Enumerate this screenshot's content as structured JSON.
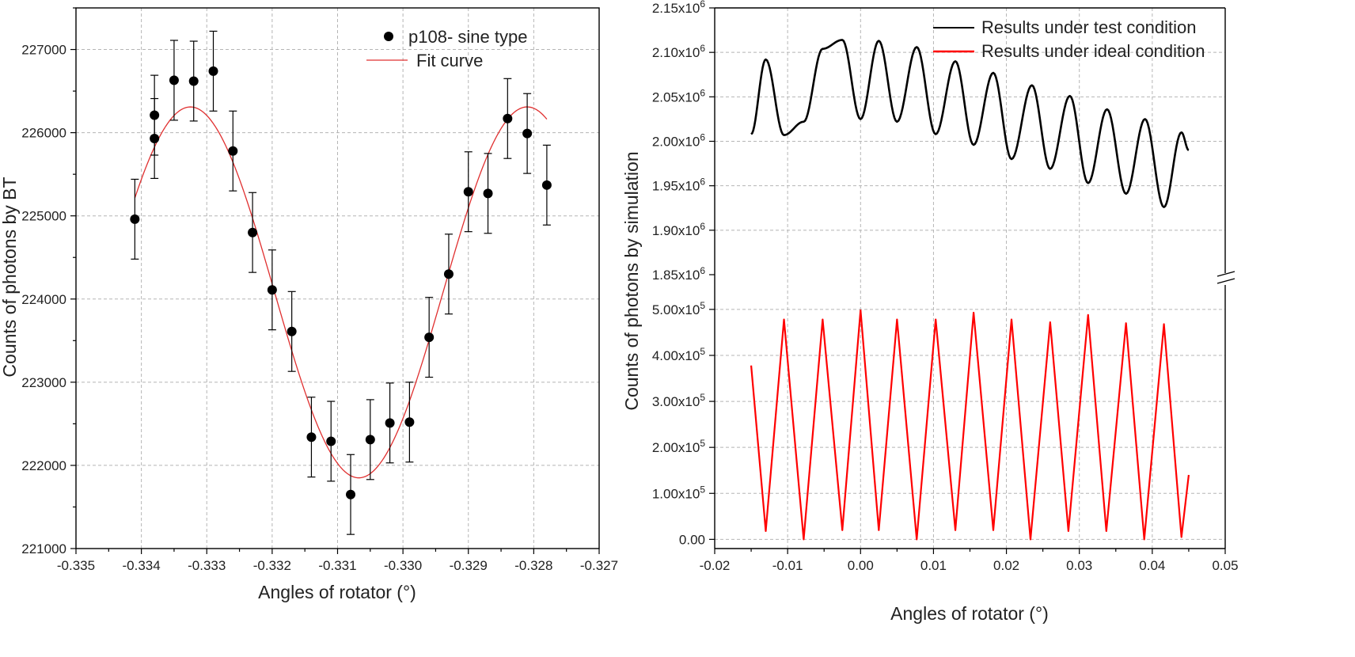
{
  "chart_data": [
    {
      "type": "scatter",
      "xlabel": "Angles of rotator (°)",
      "ylabel": "Counts of photons by BT",
      "xlim": [
        -0.335,
        -0.327
      ],
      "ylim": [
        221000,
        227500
      ],
      "xticks": [
        -0.335,
        -0.334,
        -0.333,
        -0.332,
        -0.331,
        -0.33,
        -0.329,
        -0.328,
        -0.327
      ],
      "xtick_labels": [
        "-0.335",
        "-0.334",
        "-0.333",
        "-0.332",
        "-0.331",
        "-0.330",
        "-0.329",
        "-0.328",
        "-0.327"
      ],
      "yticks": [
        221000,
        222000,
        223000,
        224000,
        225000,
        226000,
        227000
      ],
      "ytick_labels": [
        "221000",
        "222000",
        "223000",
        "224000",
        "225000",
        "226000",
        "227000"
      ],
      "grid": true,
      "legend_position": "top-right",
      "series": [
        {
          "name": "p108- sine type",
          "kind": "points-with-error-bars",
          "color": "#000000",
          "error": 480,
          "points": [
            {
              "x": -0.3341,
              "y": 224960
            },
            {
              "x": -0.3338,
              "y": 226210
            },
            {
              "x": -0.3338,
              "y": 225930
            },
            {
              "x": -0.3335,
              "y": 226630
            },
            {
              "x": -0.3332,
              "y": 226620
            },
            {
              "x": -0.3329,
              "y": 226740
            },
            {
              "x": -0.3326,
              "y": 225780
            },
            {
              "x": -0.3323,
              "y": 224800
            },
            {
              "x": -0.332,
              "y": 224110
            },
            {
              "x": -0.3317,
              "y": 223610
            },
            {
              "x": -0.3314,
              "y": 222340
            },
            {
              "x": -0.3311,
              "y": 222290
            },
            {
              "x": -0.3308,
              "y": 221650
            },
            {
              "x": -0.3305,
              "y": 222310
            },
            {
              "x": -0.3302,
              "y": 222510
            },
            {
              "x": -0.3299,
              "y": 222520
            },
            {
              "x": -0.3296,
              "y": 223540
            },
            {
              "x": -0.3293,
              "y": 224300
            },
            {
              "x": -0.329,
              "y": 225290
            },
            {
              "x": -0.3287,
              "y": 225270
            },
            {
              "x": -0.3284,
              "y": 226170
            },
            {
              "x": -0.3281,
              "y": 225990
            },
            {
              "x": -0.3278,
              "y": 225370
            }
          ]
        },
        {
          "name": "Fit curve",
          "kind": "sine-fit",
          "color": "#e03030",
          "center": 224080,
          "amplitude": 2230,
          "peak_x": -0.33325,
          "period": 0.00515,
          "x_range": [
            -0.3341,
            -0.3278
          ]
        }
      ]
    },
    {
      "type": "line",
      "xlabel": "Angles of rotator (°)",
      "ylabel": "Counts of photons by simulation",
      "xlim": [
        -0.02,
        0.05
      ],
      "xticks": [
        -0.02,
        -0.01,
        0.0,
        0.01,
        0.02,
        0.03,
        0.04,
        0.05
      ],
      "xtick_labels": [
        "-0.02",
        "-0.01",
        "0.00",
        "0.01",
        "0.02",
        "0.03",
        "0.04",
        "0.05"
      ],
      "broken_y_axis": true,
      "upper_ylim": [
        1850000,
        2150000
      ],
      "upper_yticks": [
        {
          "value": 1850000,
          "mantissa": "1.85x10",
          "exp": "6"
        },
        {
          "value": 1900000,
          "mantissa": "1.90x10",
          "exp": "6"
        },
        {
          "value": 1950000,
          "mantissa": "1.95x10",
          "exp": "6"
        },
        {
          "value": 2000000,
          "mantissa": "2.00x10",
          "exp": "6"
        },
        {
          "value": 2050000,
          "mantissa": "2.05x10",
          "exp": "6"
        },
        {
          "value": 2100000,
          "mantissa": "2.10x10",
          "exp": "6"
        },
        {
          "value": 2150000,
          "mantissa": "2.15x10",
          "exp": "6"
        }
      ],
      "lower_ylim": [
        -20000,
        560000
      ],
      "lower_yticks": [
        {
          "value": 0,
          "mantissa": "0.00",
          "exp": ""
        },
        {
          "value": 100000,
          "mantissa": "1.00x10",
          "exp": "5"
        },
        {
          "value": 200000,
          "mantissa": "2.00x10",
          "exp": "5"
        },
        {
          "value": 300000,
          "mantissa": "3.00x10",
          "exp": "5"
        },
        {
          "value": 400000,
          "mantissa": "4.00x10",
          "exp": "5"
        },
        {
          "value": 500000,
          "mantissa": "5.00x10",
          "exp": "5"
        }
      ],
      "grid": true,
      "legend_position": "top-right",
      "series": [
        {
          "name": "Results under test condition",
          "color": "#000000",
          "panel": "upper",
          "x_start": -0.015,
          "x_end": 0.045,
          "period": 0.0078,
          "peaks": [
            {
              "x": -0.013,
              "y": 2092000
            },
            {
              "x": -0.0052,
              "y": 2104000
            },
            {
              "x": -0.0025,
              "y": 2114000
            },
            {
              "x": 0.0025,
              "y": 2113000
            },
            {
              "x": 0.0077,
              "y": 2106000
            },
            {
              "x": 0.013,
              "y": 2090000
            },
            {
              "x": 0.0182,
              "y": 2077000
            },
            {
              "x": 0.0235,
              "y": 2063000
            },
            {
              "x": 0.0287,
              "y": 2051000
            },
            {
              "x": 0.0338,
              "y": 2036000
            },
            {
              "x": 0.039,
              "y": 2025000
            },
            {
              "x": 0.044,
              "y": 2010000
            }
          ],
          "troughs": [
            {
              "x": -0.0105,
              "y": 2007000
            },
            {
              "x": -0.0078,
              "y": 2022000
            },
            {
              "x": 0.0,
              "y": 2025000
            },
            {
              "x": 0.005,
              "y": 2022000
            },
            {
              "x": 0.0103,
              "y": 2008000
            },
            {
              "x": 0.0155,
              "y": 1996000
            },
            {
              "x": 0.0207,
              "y": 1980000
            },
            {
              "x": 0.026,
              "y": 1969000
            },
            {
              "x": 0.0312,
              "y": 1953000
            },
            {
              "x": 0.0364,
              "y": 1941000
            },
            {
              "x": 0.0416,
              "y": 1926000
            }
          ],
          "start_y": 2008000,
          "end_y": 1990000
        },
        {
          "name": "Results under ideal condition",
          "color": "#ff0000",
          "panel": "lower",
          "x_start": -0.015,
          "x_end": 0.045,
          "start_y": 378000,
          "end_y": 140000,
          "peaks": [
            {
              "x": -0.0105,
              "y": 478000
            },
            {
              "x": -0.0052,
              "y": 478000
            },
            {
              "x": 0.0,
              "y": 498000
            },
            {
              "x": 0.005,
              "y": 478000
            },
            {
              "x": 0.0103,
              "y": 478000
            },
            {
              "x": 0.0155,
              "y": 493000
            },
            {
              "x": 0.0207,
              "y": 478000
            },
            {
              "x": 0.026,
              "y": 472000
            },
            {
              "x": 0.0312,
              "y": 488000
            },
            {
              "x": 0.0364,
              "y": 470000
            },
            {
              "x": 0.0416,
              "y": 468000
            }
          ],
          "troughs": [
            {
              "x": -0.013,
              "y": 18000
            },
            {
              "x": -0.0078,
              "y": 0
            },
            {
              "x": -0.0025,
              "y": 20000
            },
            {
              "x": 0.0025,
              "y": 20000
            },
            {
              "x": 0.0077,
              "y": 0
            },
            {
              "x": 0.013,
              "y": 20000
            },
            {
              "x": 0.0182,
              "y": 20000
            },
            {
              "x": 0.0233,
              "y": 0
            },
            {
              "x": 0.0285,
              "y": 18000
            },
            {
              "x": 0.0337,
              "y": 18000
            },
            {
              "x": 0.0389,
              "y": 0
            },
            {
              "x": 0.044,
              "y": 5000
            }
          ]
        }
      ]
    }
  ]
}
